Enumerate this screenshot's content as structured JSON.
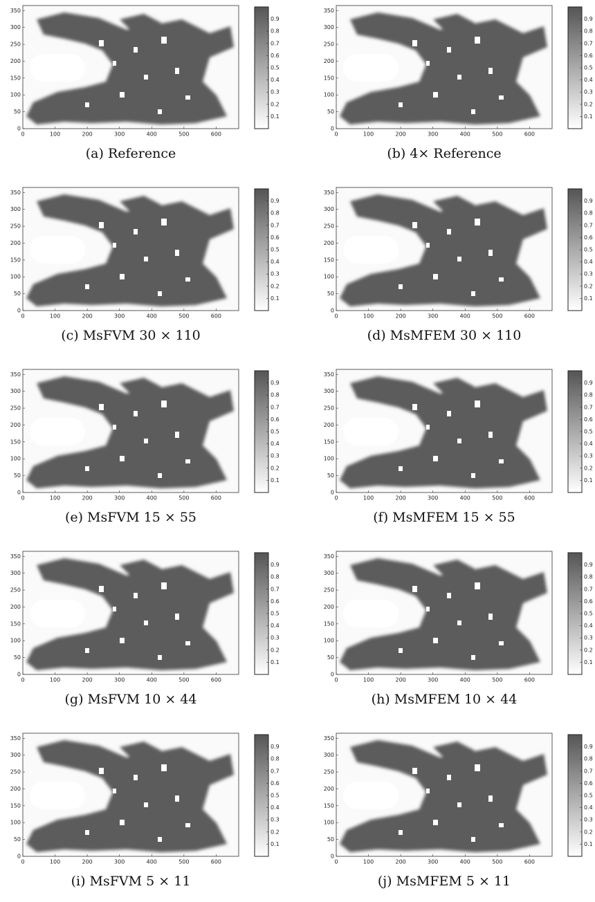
{
  "axis": {
    "xticks": [
      0,
      100,
      200,
      300,
      400,
      500,
      600
    ],
    "yticks": [
      0,
      50,
      100,
      150,
      200,
      250,
      300,
      350
    ],
    "colorbar_ticks": [
      0.1,
      0.2,
      0.3,
      0.4,
      0.5,
      0.6,
      0.7,
      0.8,
      0.9
    ]
  },
  "panels": [
    {
      "caption": "(a) Reference"
    },
    {
      "caption": "(b) 4× Reference"
    },
    {
      "caption": "(c) MsFVM 30 × 110"
    },
    {
      "caption": "(d) MsMFEM 30 × 110"
    },
    {
      "caption": "(e) MsFVM 15 × 55"
    },
    {
      "caption": "(f) MsMFEM 15 × 55"
    },
    {
      "caption": "(g) MsFVM 10 × 44"
    },
    {
      "caption": "(h) MsMFEM 10 × 44"
    },
    {
      "caption": "(i) MsFVM 5 × 11"
    },
    {
      "caption": "(j) MsMFEM 5 × 11"
    }
  ]
}
